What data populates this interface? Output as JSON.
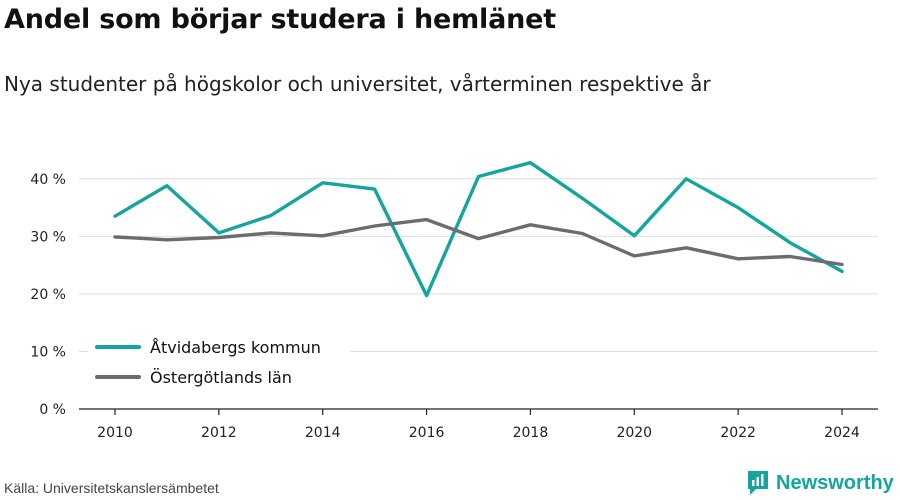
{
  "chart_data": {
    "type": "line",
    "title": "Andel som börjar studera i hemlänet",
    "subtitle": "Nya studenter på högskolor och universitet, vårterminen respektive år",
    "x": [
      2010,
      2011,
      2012,
      2013,
      2014,
      2015,
      2016,
      2017,
      2018,
      2019,
      2020,
      2021,
      2022,
      2023,
      2024
    ],
    "x_ticks": [
      "2010",
      "2012",
      "2014",
      "2016",
      "2018",
      "2020",
      "2022",
      "2024"
    ],
    "y_ticks": [
      "0 %",
      "10 %",
      "20 %",
      "30 %",
      "40 %"
    ],
    "ylim": [
      0,
      40
    ],
    "grid": true,
    "legend_position": "bottom-left",
    "series": [
      {
        "name": "Åtvidabergs kommun",
        "color": "#14a59d",
        "values": [
          33.5,
          38.8,
          30.6,
          33.6,
          39.3,
          38.2,
          19.7,
          40.4,
          42.8,
          36.6,
          30.1,
          40.0,
          35.0,
          28.9,
          23.9
        ]
      },
      {
        "name": "Östergötlands län",
        "color": "#6d6a72",
        "values": [
          29.9,
          29.4,
          29.8,
          30.6,
          30.1,
          31.8,
          32.9,
          29.6,
          32.0,
          30.5,
          26.6,
          28.0,
          26.1,
          26.5,
          25.1
        ]
      }
    ]
  },
  "source": "Källa: Universitetskanslersämbetet",
  "brand": {
    "name": "Newsworthy",
    "icon": "bar-chart-logo-icon",
    "color": "#14a59d"
  }
}
